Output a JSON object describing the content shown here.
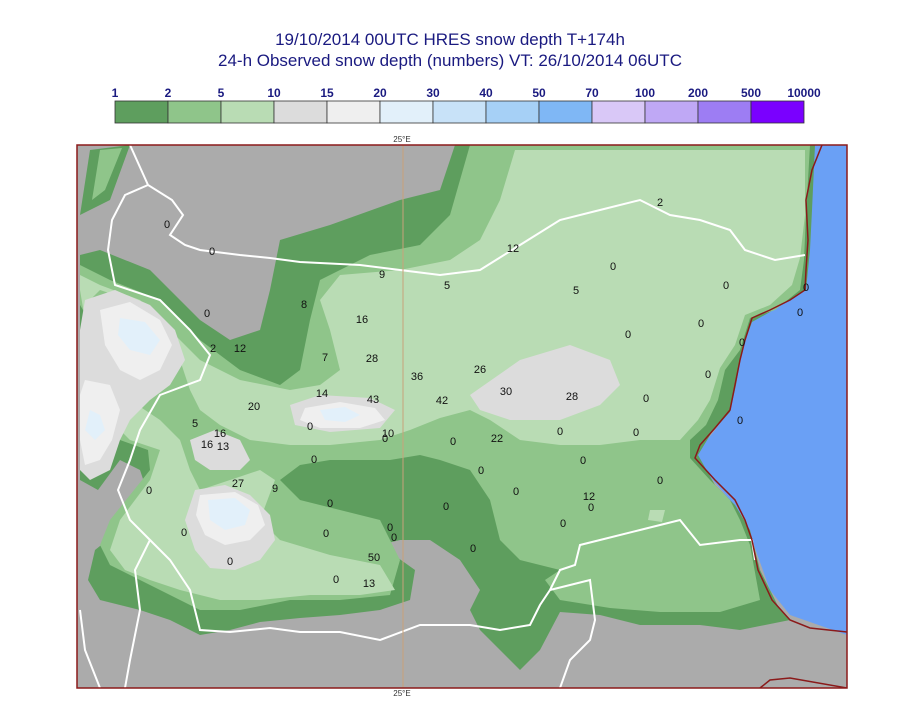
{
  "title_line1": "19/10/2014 00UTC HRES snow depth T+174h",
  "title_line2": "24-h Observed snow depth (numbers) VT: 26/10/2014 06UTC",
  "legend": {
    "labels": [
      "1",
      "2",
      "5",
      "10",
      "15",
      "20",
      "30",
      "40",
      "50",
      "70",
      "100",
      "200",
      "500",
      "10000"
    ],
    "colors": [
      "#5e9e5e",
      "#8fc58a",
      "#b9dcb4",
      "#dcdcdc",
      "#efefef",
      "#e2f0fa",
      "#c8e2f8",
      "#a6d0f6",
      "#7fb7f5",
      "#d9c8f7",
      "#bfa8f5",
      "#9d7df3",
      "#7a00ff"
    ]
  },
  "axis": {
    "top_label": "25°E",
    "bottom_label": "25°E"
  },
  "map_colors": {
    "land_no_snow": "#ababab",
    "sea": "#6aa0f5",
    "border": "#8b1a1a",
    "country_lines": "#ffffff"
  },
  "observations": [
    "0",
    "0",
    "0",
    "2",
    "12",
    "8",
    "9",
    "5",
    "12",
    "2",
    "16",
    "7",
    "28",
    "36",
    "26",
    "30",
    "28",
    "14",
    "43",
    "42",
    "20",
    "5",
    "16",
    "16",
    "13",
    "0",
    "10",
    "0",
    "0",
    "22",
    "0",
    "27",
    "9",
    "0",
    "0",
    "0",
    "0",
    "0",
    "0",
    "50",
    "0",
    "13",
    "0",
    "0",
    "0",
    "0",
    "12",
    "0",
    "0",
    "0",
    "0",
    "0",
    "0",
    "0",
    "5",
    "0",
    "0",
    "0",
    "0",
    "0",
    "0",
    "0",
    "0",
    "0",
    "0"
  ]
}
